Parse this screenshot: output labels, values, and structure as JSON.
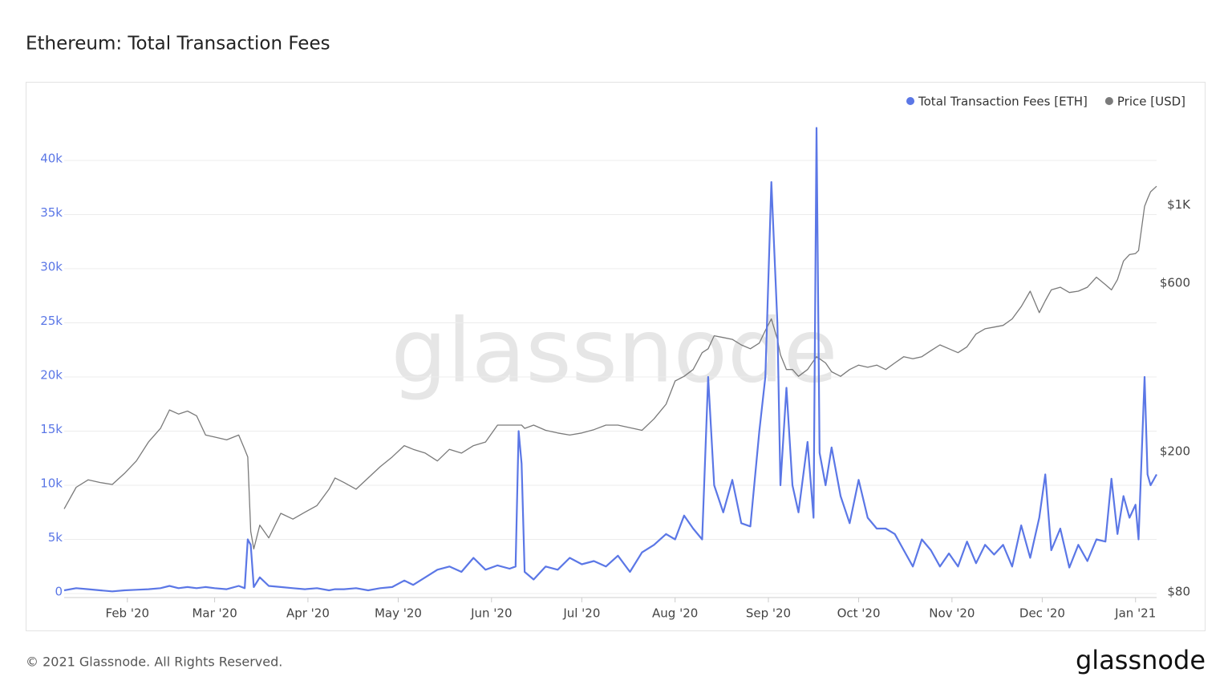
{
  "chart_data": {
    "type": "line",
    "title": "Ethereum: Total Transaction Fees",
    "x": [
      10,
      14,
      18,
      22,
      26,
      30,
      34,
      38,
      42,
      45,
      48,
      51,
      54,
      57,
      60,
      64,
      68,
      70,
      71,
      72,
      73,
      75,
      78,
      82,
      86,
      90,
      94,
      98,
      100,
      103,
      107,
      111,
      115,
      119,
      123,
      126,
      130,
      134,
      138,
      142,
      146,
      150,
      154,
      158,
      160,
      161,
      162,
      163,
      166,
      170,
      174,
      178,
      182,
      186,
      190,
      194,
      198,
      202,
      206,
      210,
      213,
      216,
      219,
      222,
      224,
      226,
      229,
      232,
      235,
      238,
      241,
      243,
      245,
      247,
      248,
      250,
      252,
      254,
      257,
      259,
      260,
      261,
      263,
      265,
      268,
      271,
      274,
      277,
      280,
      283,
      286,
      289,
      292,
      295,
      298,
      301,
      304,
      307,
      310,
      313,
      316,
      319,
      322,
      325,
      328,
      331,
      334,
      336,
      338,
      341,
      344,
      347,
      350,
      353,
      356,
      358,
      360,
      362,
      364,
      366,
      367,
      369,
      370,
      371,
      373
    ],
    "series": [
      {
        "name": "Total Transaction Fees [ETH]",
        "color": "#5b77e6",
        "axis": "y",
        "values": [
          300,
          500,
          400,
          300,
          200,
          300,
          350,
          400,
          500,
          700,
          500,
          600,
          500,
          600,
          500,
          400,
          700,
          500,
          5000,
          4500,
          600,
          1500,
          700,
          600,
          500,
          400,
          500,
          300,
          400,
          400,
          500,
          300,
          500,
          600,
          1200,
          800,
          1500,
          2200,
          2500,
          2000,
          3300,
          2200,
          2600,
          2300,
          2500,
          15000,
          12000,
          2000,
          1300,
          2500,
          2200,
          3300,
          2700,
          3000,
          2500,
          3500,
          2000,
          3800,
          4500,
          5500,
          5000,
          7200,
          6000,
          5000,
          20000,
          10000,
          7500,
          10500,
          6500,
          6200,
          15000,
          20000,
          38000,
          25000,
          10000,
          19000,
          10000,
          7500,
          14000,
          7000,
          43000,
          13000,
          10000,
          13500,
          9000,
          6500,
          10500,
          7000,
          6000,
          6000,
          5500,
          4000,
          2500,
          5000,
          4000,
          2500,
          3700,
          2500,
          4800,
          2800,
          4500,
          3600,
          4500,
          2500,
          6300,
          3300,
          7000,
          11000,
          4000,
          6000,
          2400,
          4500,
          3000,
          5000,
          4800,
          10600,
          5500,
          9000,
          7000,
          8200,
          5000,
          20000,
          11000,
          10000,
          11000
        ]
      },
      {
        "name": "Price [USD]",
        "color": "#7a7a7a",
        "axis": "y2",
        "values": [
          139,
          160,
          168,
          165,
          163,
          175,
          190,
          215,
          235,
          265,
          258,
          263,
          255,
          225,
          222,
          218,
          225,
          205,
          195,
          120,
          107,
          125,
          115,
          135,
          130,
          136,
          142,
          158,
          170,
          165,
          158,
          170,
          183,
          195,
          210,
          205,
          200,
          190,
          205,
          200,
          210,
          215,
          240,
          240,
          240,
          240,
          240,
          235,
          240,
          232,
          228,
          225,
          228,
          233,
          240,
          240,
          236,
          232,
          250,
          275,
          320,
          330,
          345,
          385,
          395,
          430,
          425,
          420,
          405,
          395,
          410,
          445,
          480,
          420,
          380,
          345,
          345,
          330,
          345,
          365,
          375,
          370,
          360,
          340,
          330,
          345,
          355,
          350,
          355,
          345,
          360,
          375,
          370,
          375,
          390,
          405,
          395,
          385,
          400,
          435,
          450,
          455,
          460,
          480,
          520,
          575,
          500,
          540,
          580,
          590,
          570,
          575,
          590,
          630,
          600,
          580,
          620,
          700,
          730,
          735,
          750,
          1000,
          1050,
          1100,
          1140
        ]
      }
    ],
    "xlim": [
      10,
      373
    ],
    "xticks": [
      {
        "value": 31,
        "label": "Feb '20"
      },
      {
        "value": 60,
        "label": "Mar '20"
      },
      {
        "value": 91,
        "label": "Apr '20"
      },
      {
        "value": 121,
        "label": "May '20"
      },
      {
        "value": 152,
        "label": "Jun '20"
      },
      {
        "value": 182,
        "label": "Jul '20"
      },
      {
        "value": 213,
        "label": "Aug '20"
      },
      {
        "value": 244,
        "label": "Sep '20"
      },
      {
        "value": 274,
        "label": "Oct '20"
      },
      {
        "value": 305,
        "label": "Nov '20"
      },
      {
        "value": 335,
        "label": "Dec '20"
      },
      {
        "value": 366,
        "label": "Jan '21"
      }
    ],
    "ylim": [
      0,
      44000
    ],
    "yticks": [
      0,
      {
        "value": 5000,
        "label": "5k"
      },
      {
        "value": 10000,
        "label": "10k"
      },
      {
        "value": 15000,
        "label": "15k"
      },
      {
        "value": 20000,
        "label": "20k"
      },
      {
        "value": 25000,
        "label": "25k"
      },
      {
        "value": 30000,
        "label": "30k"
      },
      {
        "value": 35000,
        "label": "35k"
      },
      {
        "value": 40000,
        "label": "40k"
      }
    ],
    "y2lim": [
      80,
      1790
    ],
    "y2ticks": [
      {
        "value": 80,
        "label": "$80"
      },
      {
        "value": 200,
        "label": "$200"
      },
      {
        "value": 600,
        "label": "$600"
      },
      {
        "value": 1000,
        "label": "$1K"
      }
    ],
    "y2log": true,
    "grid": true,
    "legend": "top-right"
  },
  "watermark": "glassnode",
  "footer": "© 2021 Glassnode. All Rights Reserved.",
  "logo": "glassnode"
}
